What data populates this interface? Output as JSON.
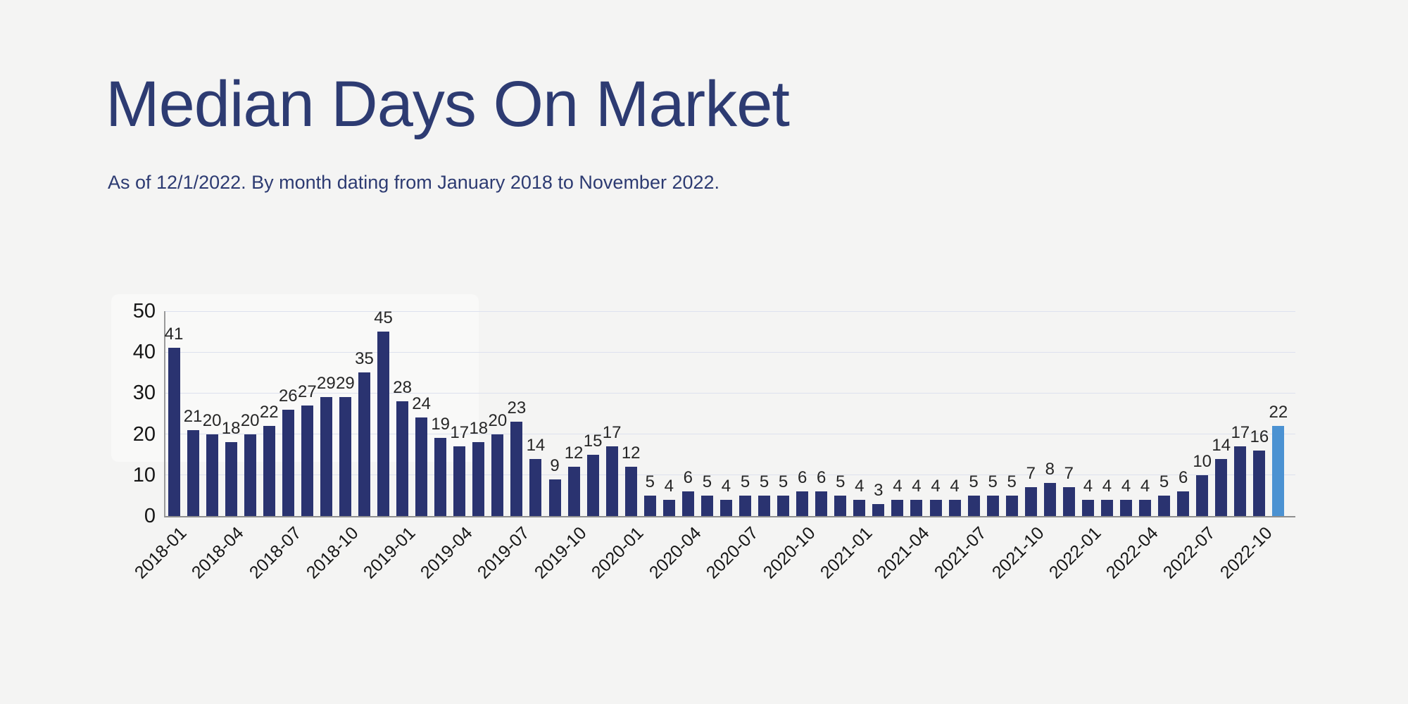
{
  "header": {
    "title": "Median Days On Market",
    "subtitle": "As of 12/1/2022. By month dating from January 2018 to November 2022."
  },
  "colors": {
    "background": "#f4f4f3",
    "title": "#2d3b72",
    "bar": "#2a3370",
    "highlight_bar": "#4b92d2",
    "gridline": "#dde1ee",
    "axis": "#9a9a9a",
    "value_label": "#262626",
    "tick_label": "#161616"
  },
  "chart_data": {
    "type": "bar",
    "title": "Median Days On Market",
    "xlabel": "",
    "ylabel": "",
    "ylim": [
      0,
      50
    ],
    "yticks": [
      0,
      10,
      20,
      30,
      40,
      50
    ],
    "grid": true,
    "legend": false,
    "xtick_every": 3,
    "highlight_index": 58,
    "categories": [
      "2018-01",
      "2018-02",
      "2018-03",
      "2018-04",
      "2018-05",
      "2018-06",
      "2018-07",
      "2018-08",
      "2018-09",
      "2018-10",
      "2018-11",
      "2018-12",
      "2019-01",
      "2019-02",
      "2019-03",
      "2019-04",
      "2019-05",
      "2019-06",
      "2019-07",
      "2019-08",
      "2019-09",
      "2019-10",
      "2019-11",
      "2019-12",
      "2020-01",
      "2020-02",
      "2020-03",
      "2020-04",
      "2020-05",
      "2020-06",
      "2020-07",
      "2020-08",
      "2020-09",
      "2020-10",
      "2020-11",
      "2020-12",
      "2021-01",
      "2021-02",
      "2021-03",
      "2021-04",
      "2021-05",
      "2021-06",
      "2021-07",
      "2021-08",
      "2021-09",
      "2021-10",
      "2021-11",
      "2021-12",
      "2022-01",
      "2022-02",
      "2022-03",
      "2022-04",
      "2022-05",
      "2022-06",
      "2022-07",
      "2022-08",
      "2022-09",
      "2022-10",
      "2022-11"
    ],
    "values": [
      41,
      21,
      20,
      18,
      20,
      22,
      26,
      27,
      29,
      29,
      35,
      45,
      28,
      24,
      19,
      17,
      18,
      20,
      23,
      14,
      9,
      12,
      15,
      17,
      12,
      5,
      4,
      6,
      5,
      4,
      5,
      5,
      5,
      6,
      6,
      5,
      4,
      3,
      4,
      4,
      4,
      4,
      5,
      5,
      5,
      7,
      8,
      7,
      4,
      4,
      4,
      4,
      5,
      6,
      10,
      14,
      17,
      16,
      22
    ]
  }
}
